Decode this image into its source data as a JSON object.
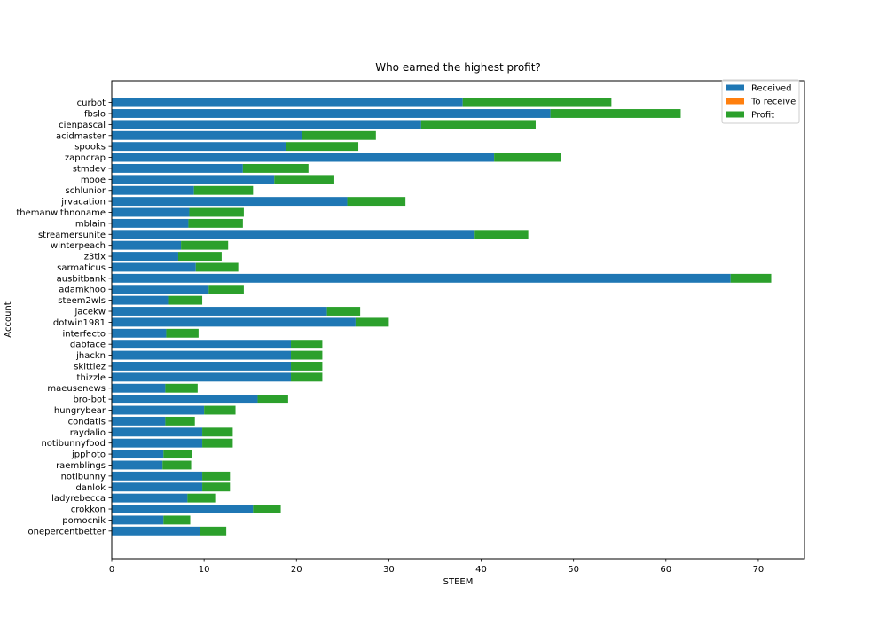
{
  "chart_data": {
    "type": "bar",
    "orientation": "horizontal",
    "stacked": true,
    "title": "Who earned the highest profit?",
    "xlabel": "STEEM",
    "ylabel": "Account",
    "xlim": [
      0,
      75
    ],
    "xticks": [
      0,
      10,
      20,
      30,
      40,
      50,
      60,
      70
    ],
    "grid": false,
    "legend_position": "top-right",
    "categories": [
      "curbot",
      "fbslo",
      "cienpascal",
      "acidmaster",
      "spooks",
      "zapncrap",
      "stmdev",
      "mooe",
      "schlunior",
      "jrvacation",
      "themanwithnoname",
      "mblain",
      "streamersunite",
      "winterpeach",
      "z3tix",
      "sarmaticus",
      "ausbitbank",
      "adamkhoo",
      "steem2wls",
      "jacekw",
      "dotwin1981",
      "interfecto",
      "dabface",
      "jhackn",
      "skittlez",
      "thizzle",
      "maeusenews",
      "bro-bot",
      "hungrybear",
      "condatis",
      "raydalio",
      "notibunnyfood",
      "jpphoto",
      "raemblings",
      "notibunny",
      "danlok",
      "ladyrebecca",
      "crokkon",
      "pomocnik",
      "onepercentbetter"
    ],
    "series": [
      {
        "name": "Received",
        "color": "#1f77b4",
        "values": [
          38.0,
          47.5,
          33.5,
          20.6,
          18.9,
          41.4,
          14.2,
          17.6,
          8.9,
          25.5,
          8.4,
          8.3,
          39.3,
          7.5,
          7.2,
          9.1,
          67.0,
          10.5,
          6.1,
          23.3,
          26.4,
          5.9,
          19.4,
          19.4,
          19.4,
          19.4,
          5.8,
          15.8,
          10.0,
          5.8,
          9.8,
          9.8,
          5.6,
          5.5,
          9.8,
          9.8,
          8.2,
          15.3,
          5.6,
          9.6
        ]
      },
      {
        "name": "To receive",
        "color": "#ff7f0e",
        "values": [
          0,
          0,
          0,
          0,
          0,
          0,
          0,
          0,
          0,
          0,
          0,
          0,
          0,
          0,
          0,
          0,
          0,
          0,
          0,
          0,
          0,
          0,
          0,
          0,
          0,
          0,
          0,
          0,
          0,
          0,
          0,
          0,
          0,
          0,
          0,
          0,
          0,
          0,
          0,
          0
        ]
      },
      {
        "name": "Profit",
        "color": "#2ca02c",
        "values": [
          16.1,
          14.1,
          12.4,
          8.0,
          7.8,
          7.2,
          7.1,
          6.5,
          6.4,
          6.3,
          5.9,
          5.9,
          5.8,
          5.1,
          4.7,
          4.6,
          4.4,
          3.8,
          3.7,
          3.6,
          3.6,
          3.5,
          3.4,
          3.4,
          3.4,
          3.4,
          3.5,
          3.3,
          3.4,
          3.2,
          3.3,
          3.3,
          3.1,
          3.1,
          3.0,
          3.0,
          3.0,
          3.0,
          2.9,
          2.8
        ]
      }
    ]
  }
}
